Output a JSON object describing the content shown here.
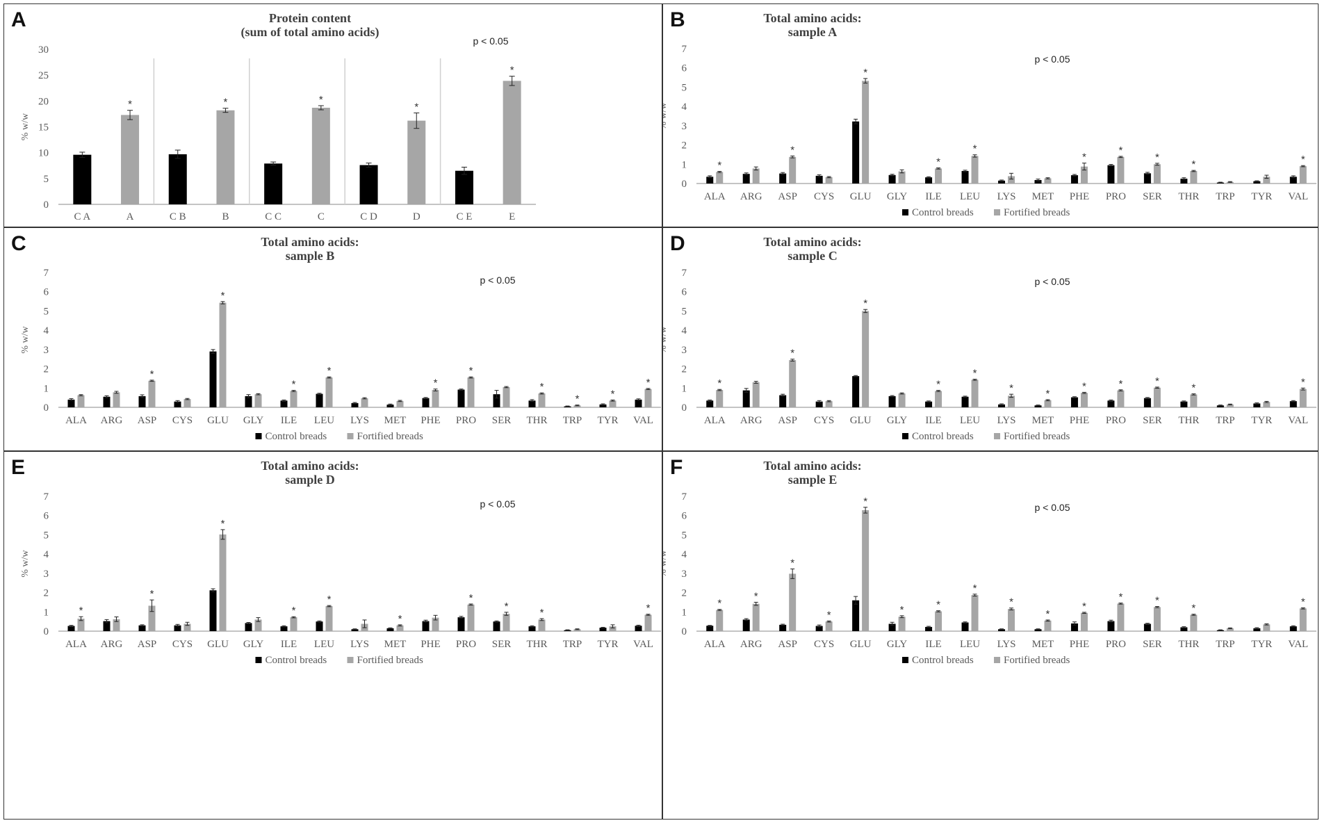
{
  "figure": {
    "colors": {
      "control": "#000000",
      "fortified": "#a6a6a6",
      "axis": "#888888",
      "text": "#595959",
      "title": "#404040"
    },
    "legend": {
      "control": "Control breads",
      "fortified": "Fortified breads"
    }
  },
  "chart_data": [
    {
      "panel": "A",
      "type": "bar",
      "title": [
        "Protein content",
        "(sum of total amino acids)"
      ],
      "ylabel": "% w/w",
      "ylim": [
        0,
        30
      ],
      "yticks": [
        "0",
        "5",
        "10",
        "15",
        "20",
        "25",
        "30"
      ],
      "annotation": "p < 0.05",
      "categories": [
        "C A",
        "A",
        "C B",
        "B",
        "C C",
        "C",
        "C D",
        "D",
        "C E",
        "E"
      ],
      "values": [
        9.6,
        17.3,
        9.7,
        18.2,
        7.9,
        18.7,
        7.6,
        16.2,
        6.5,
        23.9
      ],
      "errors": [
        0.5,
        0.9,
        0.8,
        0.4,
        0.3,
        0.4,
        0.4,
        1.5,
        0.7,
        0.9
      ],
      "bar_type": [
        "control",
        "fortified",
        "control",
        "fortified",
        "control",
        "fortified",
        "control",
        "fortified",
        "control",
        "fortified"
      ],
      "significant": [
        false,
        true,
        false,
        true,
        false,
        true,
        false,
        true,
        false,
        true
      ],
      "group_separators": true,
      "legend": false
    },
    {
      "panel": "B",
      "type": "bar",
      "title": [
        "Total amino acids:",
        "sample A"
      ],
      "ylabel": "% w/w",
      "ylim": [
        0,
        7
      ],
      "yticks": [
        "0",
        "1",
        "2",
        "3",
        "4",
        "5",
        "6",
        "7"
      ],
      "annotation": "p < 0.05",
      "categories": [
        "ALA",
        "ARG",
        "ASP",
        "CYS",
        "GLU",
        "GLY",
        "ILE",
        "LEU",
        "LYS",
        "MET",
        "PHE",
        "PRO",
        "SER",
        "THR",
        "TRP",
        "TYR",
        "VAL"
      ],
      "series": [
        {
          "name": "Control breads",
          "values": [
            0.35,
            0.5,
            0.52,
            0.4,
            3.22,
            0.44,
            0.32,
            0.65,
            0.15,
            0.18,
            0.43,
            0.95,
            0.53,
            0.25,
            0.05,
            0.12,
            0.35
          ],
          "errors": [
            0.05,
            0.05,
            0.05,
            0.05,
            0.12,
            0.04,
            0.03,
            0.04,
            0.03,
            0.05,
            0.04,
            0.04,
            0.05,
            0.05,
            0.02,
            0.02,
            0.05
          ]
        },
        {
          "name": "Fortified breads",
          "values": [
            0.6,
            0.78,
            1.38,
            0.33,
            5.33,
            0.63,
            0.78,
            1.43,
            0.38,
            0.27,
            0.88,
            1.38,
            1.0,
            0.65,
            0.08,
            0.35,
            0.9
          ],
          "errors": [
            0.03,
            0.08,
            0.05,
            0.03,
            0.12,
            0.08,
            0.03,
            0.06,
            0.15,
            0.03,
            0.18,
            0.03,
            0.05,
            0.03,
            0.02,
            0.08,
            0.03
          ]
        }
      ],
      "significant": [
        true,
        false,
        true,
        false,
        true,
        false,
        true,
        true,
        false,
        false,
        true,
        true,
        true,
        true,
        false,
        false,
        true
      ],
      "legend": true
    },
    {
      "panel": "C",
      "type": "bar",
      "title": [
        "Total amino acids:",
        "sample B"
      ],
      "ylabel": "% w/w",
      "ylim": [
        0,
        7
      ],
      "yticks": [
        "0",
        "1",
        "2",
        "3",
        "4",
        "5",
        "6",
        "7"
      ],
      "annotation": "p < 0.05",
      "categories": [
        "ALA",
        "ARG",
        "ASP",
        "CYS",
        "GLU",
        "GLY",
        "ILE",
        "LEU",
        "LYS",
        "MET",
        "PHE",
        "PRO",
        "SER",
        "THR",
        "TRP",
        "TYR",
        "VAL"
      ],
      "series": [
        {
          "name": "Control breads",
          "values": [
            0.4,
            0.55,
            0.58,
            0.3,
            2.9,
            0.58,
            0.35,
            0.7,
            0.22,
            0.14,
            0.48,
            0.92,
            0.68,
            0.35,
            0.05,
            0.15,
            0.4
          ],
          "errors": [
            0.05,
            0.05,
            0.07,
            0.05,
            0.1,
            0.08,
            0.03,
            0.03,
            0.03,
            0.03,
            0.03,
            0.03,
            0.2,
            0.05,
            0.02,
            0.03,
            0.04
          ]
        },
        {
          "name": "Fortified breads",
          "values": [
            0.63,
            0.78,
            1.38,
            0.43,
            5.43,
            0.68,
            0.85,
            1.55,
            0.47,
            0.33,
            0.9,
            1.55,
            1.05,
            0.72,
            0.1,
            0.35,
            0.95
          ],
          "errors": [
            0.03,
            0.05,
            0.03,
            0.03,
            0.06,
            0.03,
            0.03,
            0.03,
            0.03,
            0.03,
            0.05,
            0.03,
            0.03,
            0.03,
            0.02,
            0.03,
            0.03
          ]
        }
      ],
      "significant": [
        false,
        false,
        true,
        false,
        true,
        false,
        true,
        true,
        false,
        false,
        true,
        true,
        false,
        true,
        true,
        true,
        true
      ],
      "legend": true
    },
    {
      "panel": "D",
      "type": "bar",
      "title": [
        "Total amino acids:",
        "sample C"
      ],
      "ylabel": "% w/w",
      "ylim": [
        0,
        7
      ],
      "yticks": [
        "0",
        "1",
        "2",
        "3",
        "4",
        "5",
        "6",
        "7"
      ],
      "annotation": "p < 0.05",
      "categories": [
        "ALA",
        "ARG",
        "ASP",
        "CYS",
        "GLU",
        "GLY",
        "ILE",
        "LEU",
        "LYS",
        "MET",
        "PHE",
        "PRO",
        "SER",
        "THR",
        "TRP",
        "TYR",
        "VAL"
      ],
      "series": [
        {
          "name": "Control breads",
          "values": [
            0.35,
            0.88,
            0.63,
            0.3,
            1.62,
            0.58,
            0.3,
            0.55,
            0.15,
            0.1,
            0.52,
            0.35,
            0.48,
            0.3,
            0.1,
            0.2,
            0.32
          ],
          "errors": [
            0.03,
            0.1,
            0.05,
            0.05,
            0.03,
            0.03,
            0.03,
            0.03,
            0.03,
            0.02,
            0.03,
            0.03,
            0.03,
            0.03,
            0.02,
            0.03,
            0.03
          ]
        },
        {
          "name": "Fortified breads",
          "values": [
            0.9,
            1.3,
            2.45,
            0.32,
            5.0,
            0.72,
            0.85,
            1.43,
            0.6,
            0.37,
            0.75,
            0.88,
            1.02,
            0.67,
            0.15,
            0.28,
            0.95
          ],
          "errors": [
            0.03,
            0.05,
            0.05,
            0.03,
            0.08,
            0.03,
            0.03,
            0.03,
            0.08,
            0.03,
            0.03,
            0.03,
            0.03,
            0.03,
            0.02,
            0.03,
            0.05
          ]
        }
      ],
      "significant": [
        true,
        false,
        true,
        false,
        true,
        false,
        true,
        true,
        true,
        true,
        true,
        true,
        true,
        true,
        false,
        false,
        true
      ],
      "legend": true
    },
    {
      "panel": "E",
      "type": "bar",
      "title": [
        "Total amino acids:",
        "sample D"
      ],
      "ylabel": "% w/w",
      "ylim": [
        0,
        7
      ],
      "yticks": [
        "0",
        "1",
        "2",
        "3",
        "4",
        "5",
        "6",
        "7"
      ],
      "annotation": "p < 0.05",
      "categories": [
        "ALA",
        "ARG",
        "ASP",
        "CYS",
        "GLU",
        "GLY",
        "ILE",
        "LEU",
        "LYS",
        "MET",
        "PHE",
        "PRO",
        "SER",
        "THR",
        "TRP",
        "TYR",
        "VAL"
      ],
      "series": [
        {
          "name": "Control breads",
          "values": [
            0.27,
            0.52,
            0.3,
            0.3,
            2.12,
            0.42,
            0.25,
            0.5,
            0.1,
            0.15,
            0.52,
            0.72,
            0.5,
            0.25,
            0.05,
            0.18,
            0.28
          ],
          "errors": [
            0.03,
            0.08,
            0.03,
            0.05,
            0.08,
            0.03,
            0.03,
            0.03,
            0.02,
            0.02,
            0.05,
            0.05,
            0.03,
            0.03,
            0.02,
            0.02,
            0.03
          ]
        },
        {
          "name": "Fortified breads",
          "values": [
            0.65,
            0.62,
            1.32,
            0.38,
            5.02,
            0.6,
            0.72,
            1.3,
            0.38,
            0.3,
            0.7,
            1.38,
            0.9,
            0.6,
            0.1,
            0.25,
            0.85
          ],
          "errors": [
            0.1,
            0.12,
            0.3,
            0.08,
            0.25,
            0.1,
            0.03,
            0.03,
            0.2,
            0.03,
            0.12,
            0.03,
            0.08,
            0.05,
            0.02,
            0.08,
            0.03
          ]
        }
      ],
      "significant": [
        true,
        false,
        true,
        false,
        true,
        false,
        true,
        true,
        false,
        true,
        false,
        true,
        true,
        true,
        false,
        false,
        true
      ],
      "legend": true
    },
    {
      "panel": "F",
      "type": "bar",
      "title": [
        "Total amino acids:",
        "sample E"
      ],
      "ylabel": "% w/w",
      "ylim": [
        0,
        7
      ],
      "yticks": [
        "0",
        "1",
        "2",
        "3",
        "4",
        "5",
        "6",
        "7"
      ],
      "annotation": "p < 0.05",
      "categories": [
        "ALA",
        "ARG",
        "ASP",
        "CYS",
        "GLU",
        "GLY",
        "ILE",
        "LEU",
        "LYS",
        "MET",
        "PHE",
        "PRO",
        "SER",
        "THR",
        "TRP",
        "TYR",
        "VAL"
      ],
      "series": [
        {
          "name": "Control breads",
          "values": [
            0.28,
            0.6,
            0.33,
            0.27,
            1.6,
            0.38,
            0.22,
            0.45,
            0.1,
            0.1,
            0.4,
            0.52,
            0.38,
            0.2,
            0.05,
            0.15,
            0.25
          ],
          "errors": [
            0.02,
            0.05,
            0.03,
            0.05,
            0.2,
            0.08,
            0.03,
            0.03,
            0.02,
            0.02,
            0.08,
            0.05,
            0.03,
            0.03,
            0.02,
            0.03,
            0.03
          ]
        },
        {
          "name": "Fortified breads",
          "values": [
            1.1,
            1.42,
            2.98,
            0.5,
            6.28,
            0.75,
            1.03,
            1.87,
            1.15,
            0.55,
            0.95,
            1.43,
            1.25,
            0.85,
            0.15,
            0.35,
            1.18
          ],
          "errors": [
            0.03,
            0.08,
            0.25,
            0.03,
            0.15,
            0.05,
            0.03,
            0.05,
            0.05,
            0.03,
            0.03,
            0.03,
            0.03,
            0.03,
            0.02,
            0.03,
            0.03
          ]
        }
      ],
      "significant": [
        true,
        true,
        true,
        true,
        true,
        true,
        true,
        true,
        true,
        true,
        true,
        true,
        true,
        true,
        false,
        false,
        true
      ],
      "legend": true
    }
  ]
}
